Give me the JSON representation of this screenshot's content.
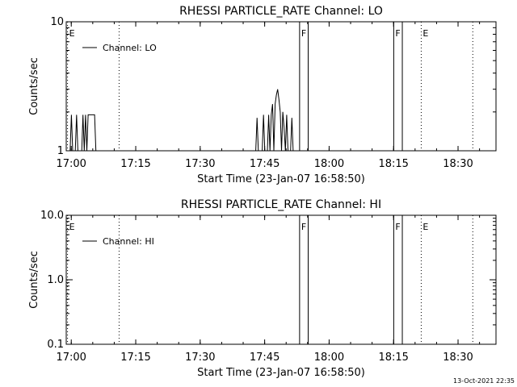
{
  "colors": {
    "background": "#ffffff",
    "foreground": "#000000"
  },
  "footer": {
    "timestamp": "13-Oct-2021 22:35"
  },
  "chart_data": [
    {
      "type": "line",
      "title": "RHESSI PARTICLE_RATE Channel: LO",
      "xlabel": "Start Time (23-Jan-07 16:58:50)",
      "ylabel": "Counts/sec",
      "x_unit": "minutes after 16:58:50",
      "xlim": [
        0,
        100
      ],
      "xticks": [
        {
          "value": 1.17,
          "label": "17:00"
        },
        {
          "value": 16.17,
          "label": "17:15"
        },
        {
          "value": 31.17,
          "label": "17:30"
        },
        {
          "value": 46.17,
          "label": "17:45"
        },
        {
          "value": 61.17,
          "label": "18:00"
        },
        {
          "value": 76.17,
          "label": "18:15"
        },
        {
          "value": 91.17,
          "label": "18:30"
        }
      ],
      "yscale": "log",
      "ylim": [
        1,
        10
      ],
      "yticks": [
        {
          "value": 1,
          "label": "1"
        },
        {
          "value": 10,
          "label": "10"
        }
      ],
      "legend": {
        "label": "Channel: LO",
        "placement": "top-left"
      },
      "grid": false,
      "series": [
        {
          "name": "Channel: LO",
          "segments": [
            [
              [
                0,
                1
              ],
              [
                0.9,
                1
              ],
              [
                1.2,
                1.9
              ],
              [
                1.5,
                1
              ],
              [
                2.1,
                1
              ],
              [
                2.4,
                1.9
              ],
              [
                2.7,
                1
              ],
              [
                3.6,
                1
              ],
              [
                3.9,
                1.9
              ],
              [
                4.2,
                1
              ],
              [
                4.5,
                1.9
              ],
              [
                4.8,
                1
              ],
              [
                5.1,
                1.9
              ],
              [
                5.4,
                1.9
              ],
              [
                6.6,
                1.9
              ],
              [
                6.9,
                1
              ],
              [
                7.2,
                1
              ]
            ],
            [
              [
                44.1,
                1
              ],
              [
                44.4,
                1.8
              ],
              [
                44.7,
                1
              ],
              [
                45.6,
                1
              ],
              [
                45.9,
                1.9
              ],
              [
                46.2,
                1
              ],
              [
                46.8,
                1
              ],
              [
                47.1,
                1.9
              ],
              [
                47.4,
                1
              ],
              [
                47.7,
                1.9
              ],
              [
                48,
                2.3
              ],
              [
                48.3,
                1
              ],
              [
                48.6,
                2.3
              ],
              [
                48.9,
                2.7
              ],
              [
                49.2,
                3
              ],
              [
                49.5,
                2.5
              ],
              [
                49.8,
                2
              ],
              [
                50.1,
                1
              ],
              [
                50.4,
                2
              ],
              [
                50.7,
                1.5
              ],
              [
                51,
                1
              ],
              [
                51.3,
                1.9
              ],
              [
                51.6,
                1
              ],
              [
                52.2,
                1
              ],
              [
                52.5,
                1.8
              ],
              [
                52.8,
                1
              ]
            ]
          ]
        }
      ],
      "markers": [
        {
          "x": 0.3,
          "label": "E",
          "style": "dotted"
        },
        {
          "x": 12.3,
          "label": "",
          "style": "dotted"
        },
        {
          "x": 54.3,
          "label": "F",
          "style": "solid"
        },
        {
          "x": 56.3,
          "label": "",
          "style": "solid"
        },
        {
          "x": 76.2,
          "label": "F",
          "style": "solid"
        },
        {
          "x": 78.2,
          "label": "",
          "style": "solid"
        },
        {
          "x": 82.6,
          "label": "E",
          "style": "dotted"
        },
        {
          "x": 94.6,
          "label": "",
          "style": "dotted"
        }
      ]
    },
    {
      "type": "line",
      "title": "RHESSI PARTICLE_RATE Channel: HI",
      "xlabel": "Start Time (23-Jan-07 16:58:50)",
      "ylabel": "Counts/sec",
      "x_unit": "minutes after 16:58:50",
      "xlim": [
        0,
        100
      ],
      "xticks": [
        {
          "value": 1.17,
          "label": "17:00"
        },
        {
          "value": 16.17,
          "label": "17:15"
        },
        {
          "value": 31.17,
          "label": "17:30"
        },
        {
          "value": 46.17,
          "label": "17:45"
        },
        {
          "value": 61.17,
          "label": "18:00"
        },
        {
          "value": 76.17,
          "label": "18:15"
        },
        {
          "value": 91.17,
          "label": "18:30"
        }
      ],
      "yscale": "log",
      "ylim": [
        0.1,
        10
      ],
      "yticks": [
        {
          "value": 0.1,
          "label": "0.1"
        },
        {
          "value": 1,
          "label": "1.0"
        },
        {
          "value": 10,
          "label": "10.0"
        }
      ],
      "legend": {
        "label": "Channel: HI",
        "placement": "top-left"
      },
      "grid": false,
      "series": [
        {
          "name": "Channel: HI",
          "segments": []
        }
      ],
      "markers": [
        {
          "x": 0.3,
          "label": "E",
          "style": "dotted"
        },
        {
          "x": 12.3,
          "label": "",
          "style": "dotted"
        },
        {
          "x": 54.3,
          "label": "F",
          "style": "solid"
        },
        {
          "x": 56.3,
          "label": "",
          "style": "solid"
        },
        {
          "x": 76.2,
          "label": "F",
          "style": "solid"
        },
        {
          "x": 78.2,
          "label": "",
          "style": "solid"
        },
        {
          "x": 82.6,
          "label": "E",
          "style": "dotted"
        },
        {
          "x": 94.6,
          "label": "",
          "style": "dotted"
        }
      ]
    }
  ]
}
